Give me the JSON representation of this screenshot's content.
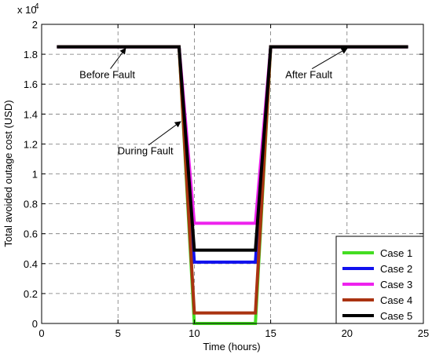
{
  "chart_data": {
    "type": "line",
    "title": "",
    "xlabel": "Time (hours)",
    "ylabel": "Total avoided outage cost (USD)",
    "xlim": [
      0,
      25
    ],
    "ylim": [
      0,
      20000
    ],
    "x_ticks": [
      0,
      5,
      10,
      15,
      20,
      25
    ],
    "y_ticks": [
      0,
      2000,
      4000,
      6000,
      8000,
      10000,
      12000,
      14000,
      16000,
      18000,
      20000
    ],
    "x_tick_labels": [
      "0",
      "5",
      "10",
      "15",
      "20",
      "25"
    ],
    "y_tick_labels": [
      "0",
      "0.2",
      "0.4",
      "0.6",
      "0.8",
      "1",
      "1.2",
      "1.4",
      "1.6",
      "1.8",
      "2"
    ],
    "y_exponent_label": "x 10",
    "y_exponent_power": "4",
    "grid": true,
    "legend_position": "bottom-right",
    "series": [
      {
        "name": "Case 1",
        "color": "#44dd22",
        "x": [
          1,
          9,
          10,
          14,
          15,
          24
        ],
        "y": [
          18500,
          18500,
          0,
          0,
          18500,
          18500
        ]
      },
      {
        "name": "Case 2",
        "color": "#1111ee",
        "x": [
          1,
          9,
          10,
          14,
          15,
          24
        ],
        "y": [
          18500,
          18500,
          4100,
          4100,
          18500,
          18500
        ]
      },
      {
        "name": "Case 3",
        "color": "#ee22ee",
        "x": [
          1,
          9,
          10,
          14,
          15,
          24
        ],
        "y": [
          18500,
          18500,
          6700,
          6700,
          18500,
          18500
        ]
      },
      {
        "name": "Case 4",
        "color": "#aa3311",
        "x": [
          1,
          9,
          10,
          14,
          15,
          24
        ],
        "y": [
          18500,
          18500,
          700,
          700,
          18500,
          18500
        ]
      },
      {
        "name": "Case 5",
        "color": "#000000",
        "x": [
          1,
          9,
          10,
          14,
          15,
          24
        ],
        "y": [
          18500,
          18500,
          4900,
          4900,
          18500,
          18500
        ]
      }
    ],
    "annotations": [
      {
        "text": "Before Fault",
        "point": [
          5.5,
          18500
        ],
        "text_at": [
          4.3,
          16400
        ]
      },
      {
        "text": "During Fault",
        "point": [
          9.1,
          13600
        ],
        "text_at": [
          6.8,
          11300
        ]
      },
      {
        "text": "After Fault",
        "point": [
          20,
          18500
        ],
        "text_at": [
          17.5,
          16400
        ]
      }
    ]
  }
}
